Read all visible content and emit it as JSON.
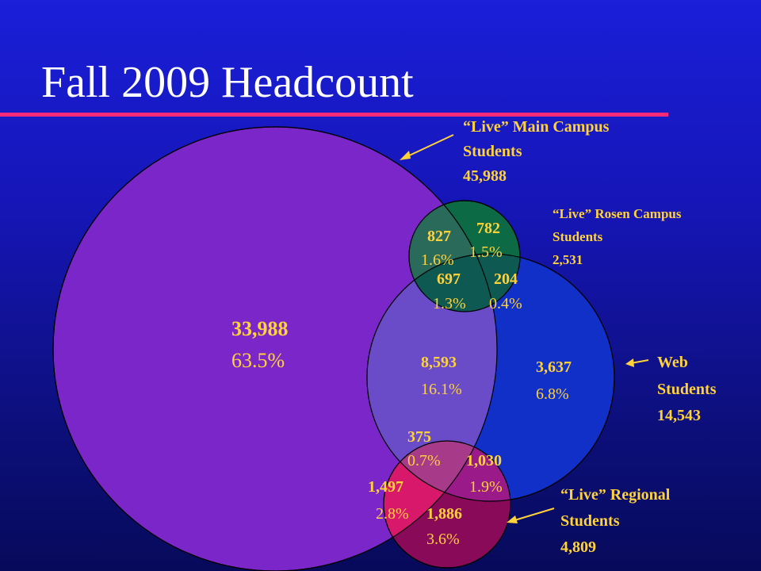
{
  "title": "Fall 2009 Headcount",
  "sets": {
    "main": {
      "line1": "“Live” Main Campus",
      "line2": "Students",
      "total": "45,988"
    },
    "rosen": {
      "line1": "“Live” Rosen Campus",
      "line2": "Students",
      "total": "2,531"
    },
    "web": {
      "line1": "Web",
      "line2": "Students",
      "total": "14,543"
    },
    "regional": {
      "line1": "“Live” Regional",
      "line2": "Students",
      "total": "4,809"
    }
  },
  "regions": {
    "main_only": {
      "count": "33,988",
      "pct": "63.5%"
    },
    "main_rosen": {
      "count": "827",
      "pct": "1.6%"
    },
    "rosen_only": {
      "count": "782",
      "pct": "1.5%"
    },
    "main_rosen_web": {
      "count": "697",
      "pct": "1.3%"
    },
    "rosen_web": {
      "count": "204",
      "pct": "0.4%"
    },
    "main_web": {
      "count": "8,593",
      "pct": "16.1%"
    },
    "web_only": {
      "count": "3,637",
      "pct": "6.8%"
    },
    "main_web_regional": {
      "count": "375",
      "pct": "0.7%"
    },
    "web_regional": {
      "count": "1,030",
      "pct": "1.9%"
    },
    "main_regional": {
      "count": "1,497",
      "pct": "2.8%"
    },
    "regional_only": {
      "count": "1,886",
      "pct": "3.6%"
    }
  },
  "colors": {
    "background": "#1616b8",
    "title_rule": "#ff2a7a",
    "main_circle": "#7b26c9",
    "rosen_circle": "#0c6a44",
    "web_circle": "#1030c8",
    "regional_circle": "#c8186a",
    "label_text": "#ffd23a"
  }
}
